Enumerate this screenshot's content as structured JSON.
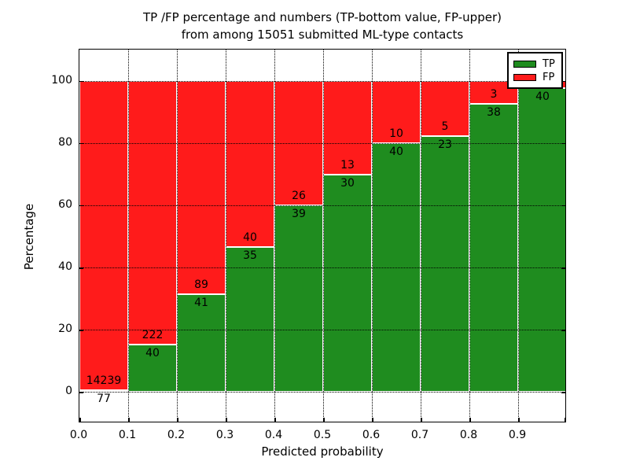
{
  "figure": {
    "title_line1": "TP /FP percentage and numbers (TP-bottom value, FP-upper)",
    "title_line2": "from among 15051 submitted ML-type contacts",
    "ylabel": "Percentage",
    "xlabel": "Predicted probability",
    "total_contacts": "15051"
  },
  "legend": {
    "position": "upper right",
    "items": [
      {
        "label": "TP",
        "color": "#1f8c1f"
      },
      {
        "label": "FP",
        "color": "#ff1b1b"
      }
    ]
  },
  "chart_data": {
    "type": "bar",
    "stacked": true,
    "title": "TP /FP percentage and numbers (TP-bottom value, FP-upper) from among 15051 submitted ML-type contacts",
    "xlabel": "Predicted probability",
    "ylabel": "Percentage",
    "xlim": [
      0.0,
      1.0
    ],
    "ylim": [
      -10,
      110
    ],
    "grid": "dotted",
    "legend_position": "upper right",
    "x_tick_labels": [
      "0.0",
      "0.1",
      "0.2",
      "0.3",
      "0.4",
      "0.5",
      "0.6",
      "0.7",
      "0.8",
      "0.9"
    ],
    "y_ticks": [
      0,
      20,
      40,
      60,
      80,
      100
    ],
    "y_tick_labels": [
      "0",
      "20",
      "40",
      "60",
      "80",
      "100"
    ],
    "colors": {
      "tp": "#1f8c1f",
      "fp": "#ff1b1b",
      "bar_edge": "#ffffff"
    },
    "series_note": "green TP percentage stacked below red FP percentage, each bin sums to 100%",
    "bins": [
      {
        "x_start": 0.0,
        "tp": 77,
        "fp": 14239,
        "tp_label": "77",
        "fp_label": "14239",
        "fp_label_visible": true
      },
      {
        "x_start": 0.1,
        "tp": 40,
        "fp": 222,
        "tp_label": "40",
        "fp_label": "222",
        "fp_label_visible": true
      },
      {
        "x_start": 0.2,
        "tp": 41,
        "fp": 89,
        "tp_label": "41",
        "fp_label": "89",
        "fp_label_visible": true
      },
      {
        "x_start": 0.3,
        "tp": 35,
        "fp": 40,
        "tp_label": "35",
        "fp_label": "40",
        "fp_label_visible": true
      },
      {
        "x_start": 0.4,
        "tp": 39,
        "fp": 26,
        "tp_label": "39",
        "fp_label": "26",
        "fp_label_visible": true
      },
      {
        "x_start": 0.5,
        "tp": 30,
        "fp": 13,
        "tp_label": "30",
        "fp_label": "13",
        "fp_label_visible": true
      },
      {
        "x_start": 0.6,
        "tp": 40,
        "fp": 10,
        "tp_label": "40",
        "fp_label": "10",
        "fp_label_visible": true
      },
      {
        "x_start": 0.7,
        "tp": 23,
        "fp": 5,
        "tp_label": "23",
        "fp_label": "5",
        "fp_label_visible": true
      },
      {
        "x_start": 0.8,
        "tp": 38,
        "fp": 3,
        "tp_label": "38",
        "fp_label": "3",
        "fp_label_visible": true
      },
      {
        "x_start": 0.9,
        "tp": 40,
        "fp": 1,
        "tp_label": "40",
        "fp_label": "",
        "fp_label_visible": false
      }
    ]
  }
}
